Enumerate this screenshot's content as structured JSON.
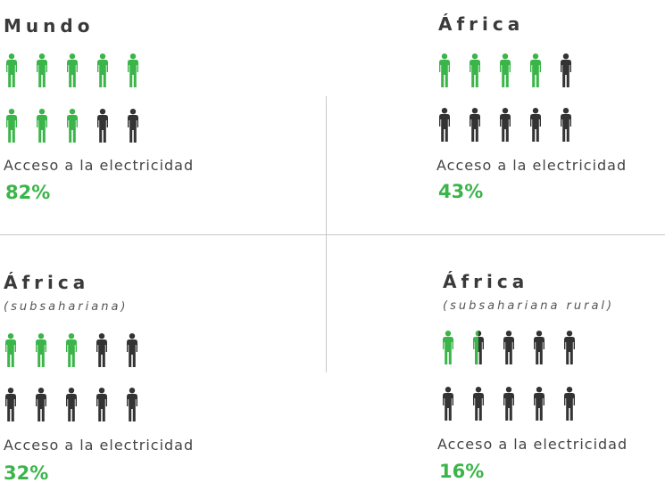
{
  "colors": {
    "access": "#3bb54a",
    "no_access": "#333333"
  },
  "panels": [
    {
      "title": "Mundo",
      "subtitle": "",
      "label": "Acceso a la electricidad",
      "value_text": "82%"
    },
    {
      "title": "África",
      "subtitle": "",
      "label": "Acceso a la electricidad",
      "value_text": "43%"
    },
    {
      "title": "África",
      "subtitle": "(subsahariana)",
      "label": "Acceso a la electricidad",
      "value_text": "32%"
    },
    {
      "title": "África",
      "subtitle": "(subsahariana rural)",
      "label": "Acceso a la electricidad",
      "value_text": "16%"
    }
  ],
  "chart_data": [
    {
      "type": "pictogram",
      "title": "Mundo",
      "subtitle": "",
      "label": "Acceso a la electricidad",
      "value": 82,
      "units": "%",
      "icons_total": 10,
      "icons_filled": 8
    },
    {
      "type": "pictogram",
      "title": "África",
      "subtitle": "",
      "label": "Acceso a la electricidad",
      "value": 43,
      "units": "%",
      "icons_total": 10,
      "icons_filled": 4
    },
    {
      "type": "pictogram",
      "title": "África",
      "subtitle": "(subsahariana)",
      "label": "Acceso a la electricidad",
      "value": 32,
      "units": "%",
      "icons_total": 10,
      "icons_filled": 3
    },
    {
      "type": "pictogram",
      "title": "África",
      "subtitle": "(subsahariana rural)",
      "label": "Acceso a la electricidad",
      "value": 16,
      "units": "%",
      "icons_total": 10,
      "icons_filled": 1.5
    }
  ]
}
